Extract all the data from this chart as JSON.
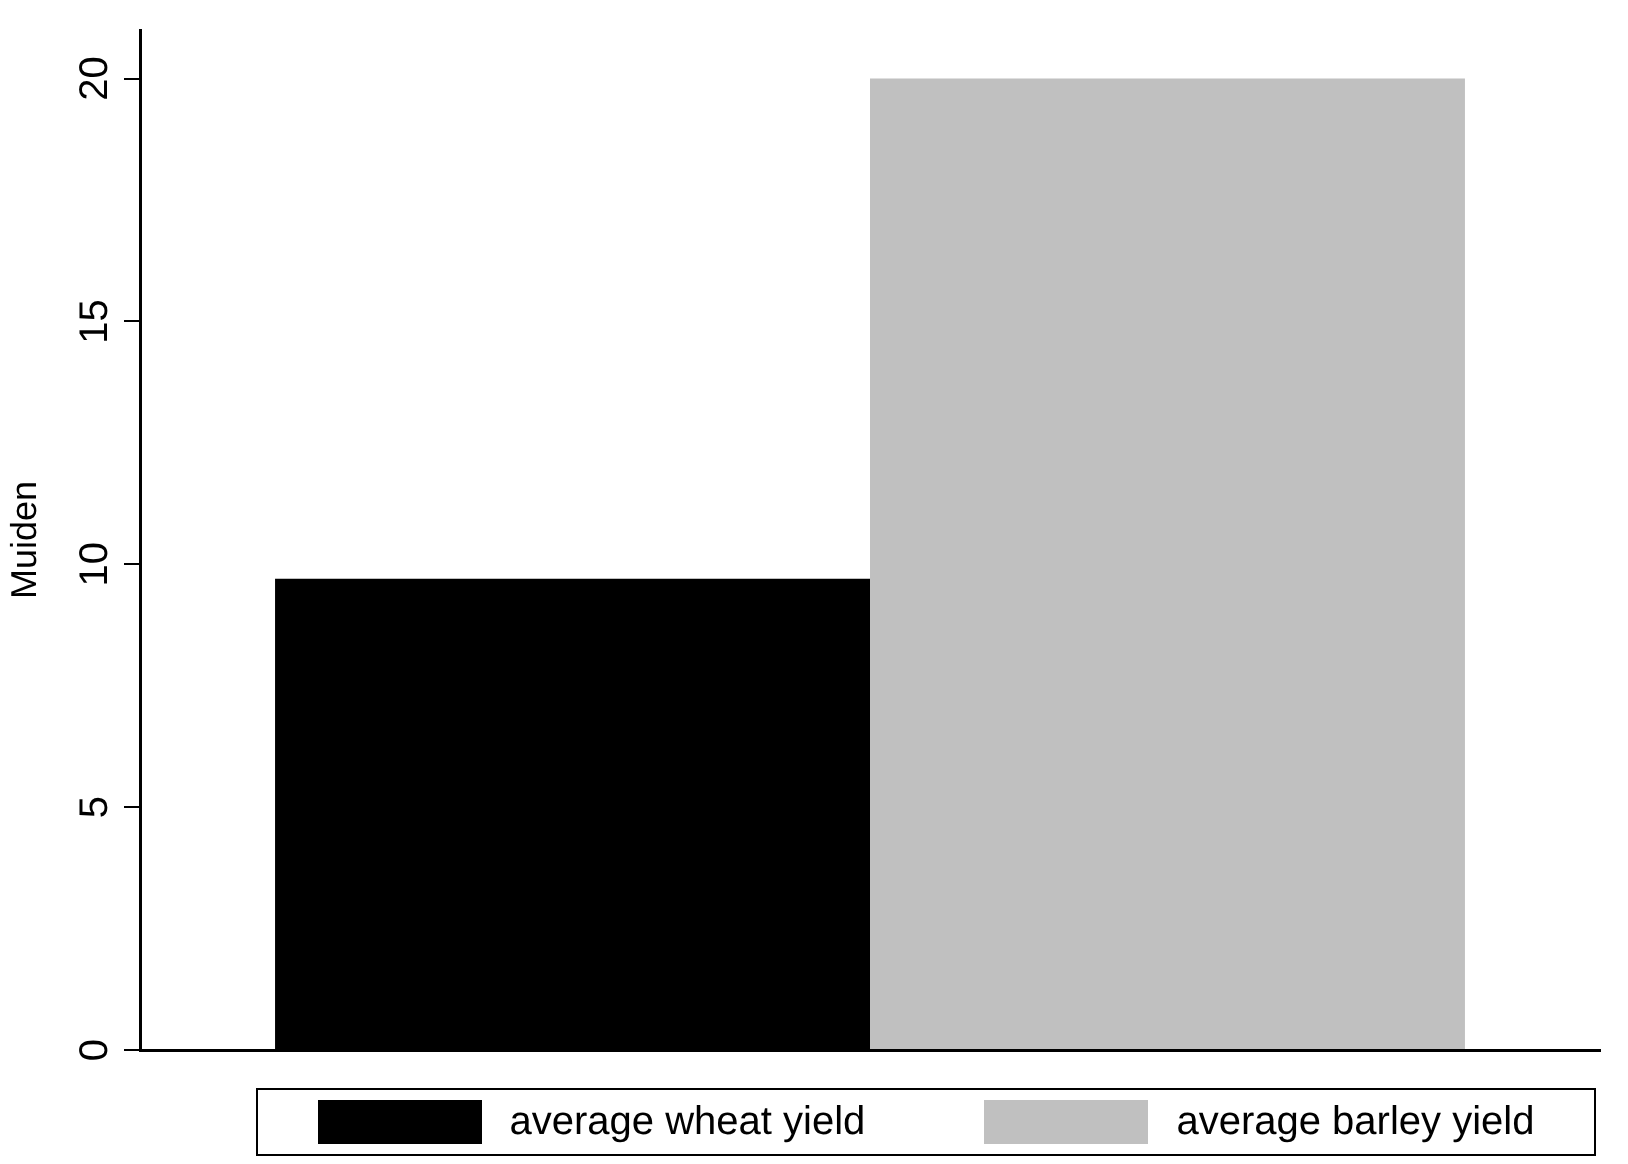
{
  "chart_data": {
    "type": "bar",
    "ylabel": "Muiden",
    "categories": [
      null
    ],
    "series": [
      {
        "name": "average wheat yield",
        "color": "#000000",
        "values": [
          9.7
        ]
      },
      {
        "name": "average barley yield",
        "color": "#c0c0c0",
        "values": [
          20
        ]
      }
    ],
    "ylim": [
      0,
      21
    ],
    "yticks": [
      0,
      5,
      10,
      15,
      20
    ],
    "grid": false,
    "legend": "bottom"
  }
}
